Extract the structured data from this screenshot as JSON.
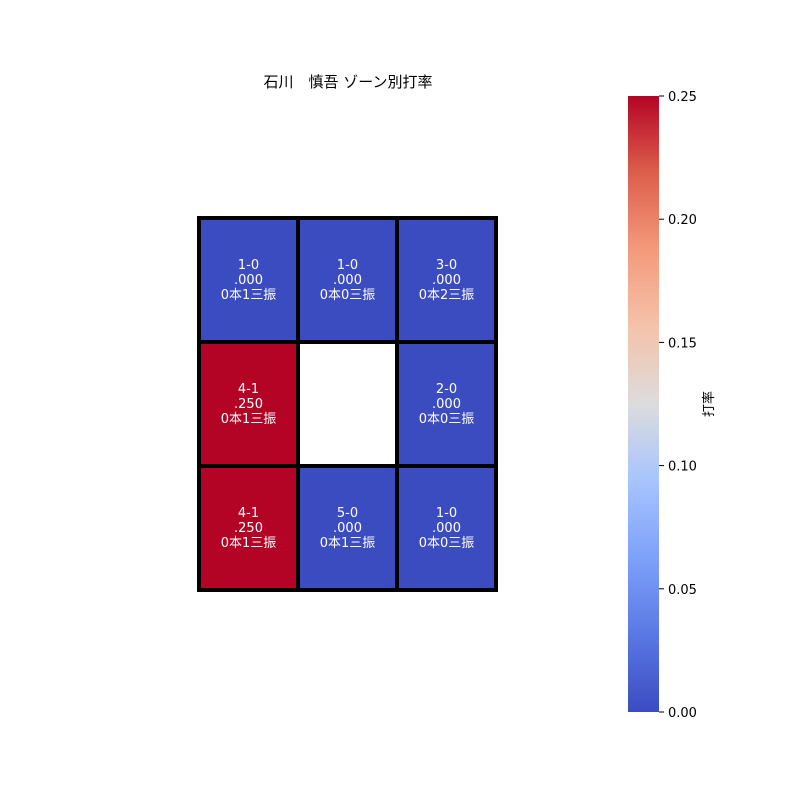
{
  "chart_data": {
    "type": "heatmap",
    "title": "石川　慎吾 ゾーン別打率",
    "colorbar": {
      "label": "打率",
      "range": [
        0.0,
        0.25
      ],
      "ticks": [
        "0.00",
        "0.05",
        "0.10",
        "0.15",
        "0.20",
        "0.25"
      ],
      "colormap": "coolwarm"
    },
    "grid": {
      "rows": 3,
      "cols": 3,
      "cells": [
        {
          "row": 0,
          "col": 0,
          "value": 0.0,
          "lines": [
            "1-0",
            ".000",
            "0本1三振"
          ]
        },
        {
          "row": 0,
          "col": 1,
          "value": 0.0,
          "lines": [
            "1-0",
            ".000",
            "0本0三振"
          ]
        },
        {
          "row": 0,
          "col": 2,
          "value": 0.0,
          "lines": [
            "3-0",
            ".000",
            "0本2三振"
          ]
        },
        {
          "row": 1,
          "col": 0,
          "value": 0.25,
          "lines": [
            "4-1",
            ".250",
            "0本1三振"
          ]
        },
        {
          "row": 1,
          "col": 1,
          "value": null,
          "lines": []
        },
        {
          "row": 1,
          "col": 2,
          "value": 0.0,
          "lines": [
            "2-0",
            ".000",
            "0本0三振"
          ]
        },
        {
          "row": 2,
          "col": 0,
          "value": 0.25,
          "lines": [
            "4-1",
            ".250",
            "0本1三振"
          ]
        },
        {
          "row": 2,
          "col": 1,
          "value": 0.0,
          "lines": [
            "5-0",
            ".000",
            "0本1三振"
          ]
        },
        {
          "row": 2,
          "col": 2,
          "value": 0.0,
          "lines": [
            "1-0",
            ".000",
            "0本0三振"
          ]
        }
      ]
    },
    "colors": {
      "low": "#3b4cc0",
      "high": "#b40426",
      "empty": "#ffffff",
      "cell_text": "#ffffff",
      "border": "#000000"
    }
  }
}
